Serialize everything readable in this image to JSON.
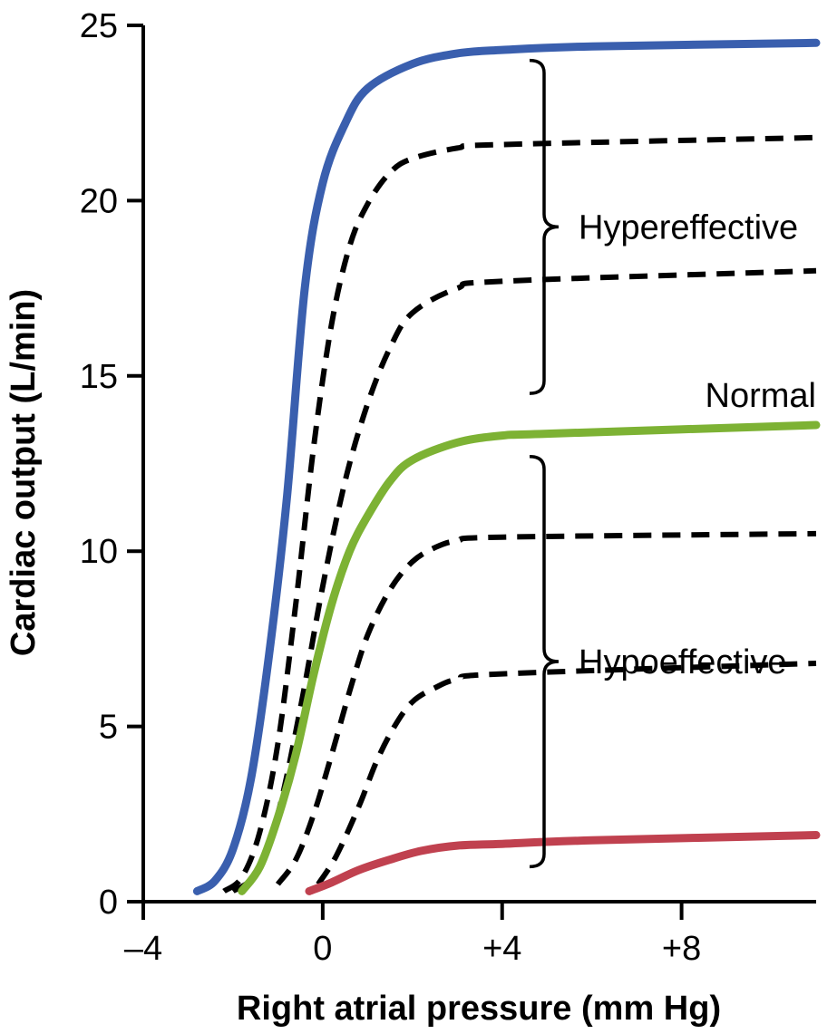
{
  "chart_data": {
    "type": "line",
    "title": "",
    "xlabel": "Right atrial pressure (mm Hg)",
    "ylabel": "Cardiac output (L/min)",
    "xlim": [
      -4,
      11
    ],
    "ylim": [
      0,
      25
    ],
    "x_ticks": [
      -4,
      0,
      4,
      8
    ],
    "x_tick_labels": [
      "–4",
      "0",
      "+4",
      "+8"
    ],
    "y_ticks": [
      0,
      5,
      10,
      15,
      20,
      25
    ],
    "y_tick_labels": [
      "0",
      "5",
      "10",
      "15",
      "20",
      "25"
    ],
    "grid": false,
    "legend": "none",
    "series": [
      {
        "color": "#3a5fae",
        "style": "solid",
        "points": [
          [
            -2.8,
            0.3
          ],
          [
            -2.4,
            0.6
          ],
          [
            -2.0,
            1.5
          ],
          [
            -1.6,
            3.5
          ],
          [
            -1.2,
            7.0
          ],
          [
            -0.8,
            11.5
          ],
          [
            -0.4,
            17.5
          ],
          [
            0,
            20.5
          ],
          [
            0.5,
            22.2
          ],
          [
            1.0,
            23.2
          ],
          [
            2.0,
            23.9
          ],
          [
            3.0,
            24.2
          ],
          [
            4.0,
            24.3
          ],
          [
            6.0,
            24.4
          ],
          [
            11.0,
            24.5
          ]
        ]
      },
      {
        "color": "#000000",
        "style": "dashed",
        "points": [
          [
            -2.2,
            0.3
          ],
          [
            -1.8,
            0.7
          ],
          [
            -1.4,
            2.0
          ],
          [
            -1.0,
            4.5
          ],
          [
            -0.6,
            8.5
          ],
          [
            -0.2,
            13.0
          ],
          [
            0.2,
            16.5
          ],
          [
            0.6,
            18.7
          ],
          [
            1.0,
            19.9
          ],
          [
            1.5,
            20.8
          ],
          [
            2.0,
            21.2
          ],
          [
            3.0,
            21.5
          ],
          [
            4.0,
            21.6
          ],
          [
            11.0,
            21.8
          ]
        ]
      },
      {
        "color": "#000000",
        "style": "dashed",
        "points": [
          [
            -2.0,
            0.3
          ],
          [
            -1.5,
            0.8
          ],
          [
            -1.0,
            2.5
          ],
          [
            -0.5,
            5.5
          ],
          [
            0,
            9.0
          ],
          [
            0.5,
            12.0
          ],
          [
            1.0,
            14.2
          ],
          [
            1.5,
            15.8
          ],
          [
            2.0,
            16.8
          ],
          [
            3.0,
            17.5
          ],
          [
            4.0,
            17.7
          ],
          [
            11.0,
            18.0
          ]
        ]
      },
      {
        "color": "#7db234",
        "style": "solid",
        "points": [
          [
            -1.8,
            0.3
          ],
          [
            -1.4,
            1.0
          ],
          [
            -1.0,
            2.4
          ],
          [
            -0.6,
            4.2
          ],
          [
            -0.2,
            6.5
          ],
          [
            0.2,
            8.5
          ],
          [
            0.6,
            10.0
          ],
          [
            1.0,
            11.0
          ],
          [
            1.5,
            12.0
          ],
          [
            2.0,
            12.6
          ],
          [
            3.0,
            13.1
          ],
          [
            4.0,
            13.3
          ],
          [
            5.0,
            13.35
          ],
          [
            11.0,
            13.6
          ]
        ]
      },
      {
        "color": "#000000",
        "style": "dashed",
        "points": [
          [
            -1.0,
            0.5
          ],
          [
            -0.6,
            1.2
          ],
          [
            -0.2,
            2.5
          ],
          [
            0.2,
            4.2
          ],
          [
            0.6,
            6.0
          ],
          [
            1.0,
            7.6
          ],
          [
            1.5,
            8.9
          ],
          [
            2.0,
            9.7
          ],
          [
            2.5,
            10.1
          ],
          [
            3.0,
            10.3
          ],
          [
            4.0,
            10.4
          ],
          [
            11.0,
            10.5
          ]
        ]
      },
      {
        "color": "#000000",
        "style": "dashed",
        "points": [
          [
            -0.1,
            0.5
          ],
          [
            0.3,
            1.3
          ],
          [
            0.8,
            2.7
          ],
          [
            1.2,
            4.0
          ],
          [
            1.6,
            5.0
          ],
          [
            2.0,
            5.7
          ],
          [
            2.5,
            6.1
          ],
          [
            3.0,
            6.35
          ],
          [
            4.0,
            6.5
          ],
          [
            11.0,
            6.8
          ]
        ]
      },
      {
        "color": "#c0414f",
        "style": "solid",
        "points": [
          [
            -0.3,
            0.3
          ],
          [
            0.2,
            0.55
          ],
          [
            0.8,
            0.9
          ],
          [
            1.5,
            1.2
          ],
          [
            2.2,
            1.45
          ],
          [
            3.0,
            1.6
          ],
          [
            4.0,
            1.65
          ],
          [
            6.0,
            1.75
          ],
          [
            11.0,
            1.9
          ]
        ]
      }
    ],
    "annotations": [
      {
        "text": "Hypereffective",
        "y_range": [
          14.5,
          24.0
        ]
      },
      {
        "text": "Normal"
      },
      {
        "text": "Hypoeffective",
        "y_range": [
          1.0,
          12.7
        ]
      }
    ]
  }
}
